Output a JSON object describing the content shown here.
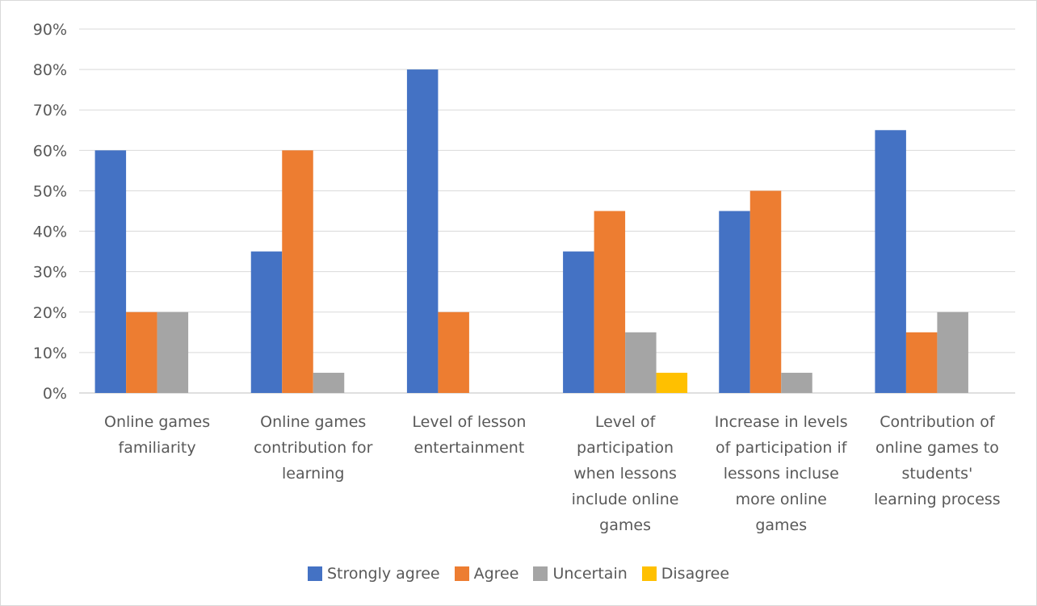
{
  "chart_data": {
    "type": "bar",
    "categories": [
      "Online games familiarity",
      "Online games contribution for learning",
      "Level of lesson entertainment",
      "Level of participation when lessons include online games",
      "Increase in levels of participation if lessons incluse more online games",
      "Contribution of online games to students' learning process"
    ],
    "category_lines": [
      [
        "Online games",
        "familiarity"
      ],
      [
        "Online games",
        "contribution for",
        "learning"
      ],
      [
        "Level of lesson",
        "entertainment"
      ],
      [
        "Level of",
        "participation",
        "when lessons",
        "include online",
        "games"
      ],
      [
        "Increase in levels",
        "of participation if",
        "lessons incluse",
        "more online",
        "games"
      ],
      [
        "Contribution of",
        "online games to",
        "students'",
        "learning process"
      ]
    ],
    "series": [
      {
        "name": "Strongly agree",
        "color": "#4472C4",
        "values": [
          60,
          35,
          80,
          35,
          45,
          65
        ]
      },
      {
        "name": "Agree",
        "color": "#ED7D31",
        "values": [
          20,
          60,
          20,
          45,
          50,
          15
        ]
      },
      {
        "name": "Uncertain",
        "color": "#A5A5A5",
        "values": [
          20,
          5,
          0,
          15,
          5,
          20
        ]
      },
      {
        "name": "Disagree",
        "color": "#FFC000",
        "values": [
          0,
          0,
          0,
          5,
          0,
          0
        ]
      }
    ],
    "yticks": [
      "0%",
      "10%",
      "20%",
      "30%",
      "40%",
      "50%",
      "60%",
      "70%",
      "80%",
      "90%"
    ],
    "ylim": [
      0,
      90
    ],
    "y_unit": "%",
    "grid": true,
    "legend_position": "bottom"
  }
}
